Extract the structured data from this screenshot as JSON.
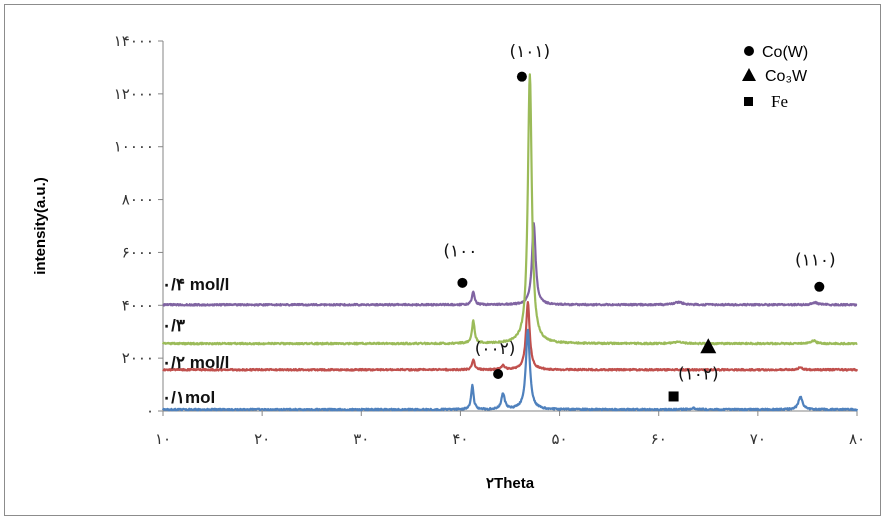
{
  "chart_data": {
    "type": "line",
    "xlabel": "۲Theta",
    "ylabel": "intensity(a.u.)",
    "xlim": [
      10,
      80
    ],
    "ylim": [
      0,
      14000
    ],
    "x_ticks": [
      {
        "value": 10,
        "label": "۱۰"
      },
      {
        "value": 20,
        "label": "۲۰"
      },
      {
        "value": 30,
        "label": "۳۰"
      },
      {
        "value": 40,
        "label": "۴۰"
      },
      {
        "value": 50,
        "label": "۵۰"
      },
      {
        "value": 60,
        "label": "۶۰"
      },
      {
        "value": 70,
        "label": "۷۰"
      },
      {
        "value": 80,
        "label": "۸۰"
      }
    ],
    "y_ticks": [
      {
        "value": 0,
        "label": "۰"
      },
      {
        "value": 2000,
        "label": "۲۰۰۰"
      },
      {
        "value": 4000,
        "label": "۴۰۰۰"
      },
      {
        "value": 6000,
        "label": "۶۰۰۰"
      },
      {
        "value": 8000,
        "label": "۸۰۰۰"
      },
      {
        "value": 10000,
        "label": "۱۰۰۰۰"
      },
      {
        "value": 12000,
        "label": "۱۲۰۰۰"
      },
      {
        "value": 14000,
        "label": "۱۴۰۰۰"
      }
    ],
    "grid": false,
    "series": [
      {
        "name": "۰/۴ mol/l",
        "color": "#8064a2",
        "baseline": 4020,
        "peaks": [
          {
            "x": 41.3,
            "height": 500,
            "width": 0.15
          },
          {
            "x": 47.4,
            "height": 3100,
            "width": 0.22
          },
          {
            "x": 62.0,
            "height": 100,
            "width": 0.5
          },
          {
            "x": 75.8,
            "height": 80,
            "width": 0.35
          }
        ]
      },
      {
        "name": "۰/۳",
        "color": "#9bbb59",
        "baseline": 2550,
        "peaks": [
          {
            "x": 41.3,
            "height": 850,
            "width": 0.16
          },
          {
            "x": 47.0,
            "height": 10200,
            "width": 0.24
          },
          {
            "x": 62.0,
            "height": 60,
            "width": 0.5
          },
          {
            "x": 75.6,
            "height": 110,
            "width": 0.3
          }
        ]
      },
      {
        "name": "۰/۲ mol/l",
        "color": "#c0504d",
        "baseline": 1560,
        "peaks": [
          {
            "x": 41.3,
            "height": 380,
            "width": 0.15
          },
          {
            "x": 44.3,
            "height": 160,
            "width": 0.2
          },
          {
            "x": 46.8,
            "height": 2550,
            "width": 0.22
          },
          {
            "x": 74.3,
            "height": 80,
            "width": 0.3
          }
        ]
      },
      {
        "name": "۰/۱mol",
        "color": "#4f81bd",
        "baseline": 55,
        "peaks": [
          {
            "x": 41.2,
            "height": 900,
            "width": 0.15
          },
          {
            "x": 44.3,
            "height": 600,
            "width": 0.2
          },
          {
            "x": 46.8,
            "height": 3000,
            "width": 0.24
          },
          {
            "x": 63.5,
            "height": 50,
            "width": 0.4
          },
          {
            "x": 74.3,
            "height": 480,
            "width": 0.25
          }
        ]
      }
    ],
    "annotations": [
      {
        "text": "(۱۰۱)",
        "x": 47.0,
        "y": 13400,
        "marker": "circle",
        "marker_x": 46.2,
        "marker_y": 12650
      },
      {
        "text": "(۱۰۰",
        "x": 40.0,
        "y": 5850,
        "marker": "circle",
        "marker_x": 40.2,
        "marker_y": 4850
      },
      {
        "text": "(۱۱۰)",
        "x": 75.8,
        "y": 5500,
        "marker": "circle",
        "marker_x": 76.2,
        "marker_y": 4700
      },
      {
        "text": "(۰۰۲)",
        "x": 43.5,
        "y": 2150,
        "marker": "circle",
        "marker_x": 43.8,
        "marker_y": 1400
      },
      {
        "text": "(۱۰۲)",
        "x": 64.0,
        "y": 1200,
        "marker": "square",
        "marker_x": 61.5,
        "marker_y": 550
      },
      {
        "text": "",
        "x": 65.0,
        "y": 2450,
        "marker": "triangle",
        "marker_x": 65.0,
        "marker_y": 2450
      }
    ],
    "legend": {
      "position": "top-right",
      "items": [
        {
          "marker": "circle",
          "label": "Co(W)"
        },
        {
          "marker": "triangle",
          "label": "Co₃W"
        },
        {
          "marker": "square",
          "label": "Fe"
        }
      ]
    }
  }
}
